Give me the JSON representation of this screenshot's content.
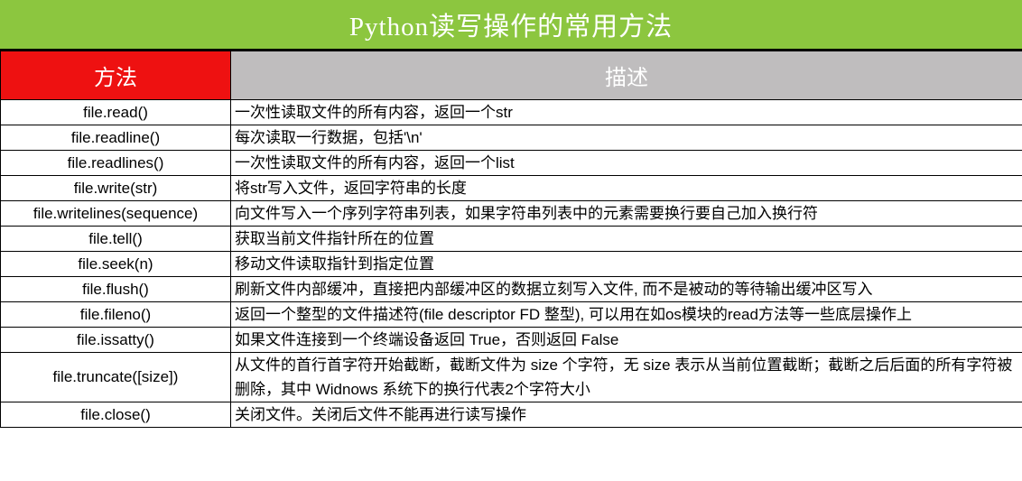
{
  "title": "Python读写操作的常用方法",
  "columns": {
    "method": "方法",
    "description": "描述"
  },
  "colors": {
    "title_bg": "#8CC63F",
    "title_text": "#FFFFFF",
    "method_header_bg": "#EE1111",
    "description_header_bg": "#BFBDBE",
    "header_text": "#FFFFFF",
    "border": "#000000",
    "body_text": "#000000",
    "row_bg": "#FFFFFF"
  },
  "rows": [
    {
      "method": "file.read()",
      "description": "一次性读取文件的所有内容，返回一个str"
    },
    {
      "method": "file.readline()",
      "description": "每次读取一行数据，包括'\\n'"
    },
    {
      "method": "file.readlines()",
      "description": "一次性读取文件的所有内容，返回一个list"
    },
    {
      "method": "file.write(str)",
      "description": "将str写入文件，返回字符串的长度"
    },
    {
      "method": "file.writelines(sequence)",
      "description": "向文件写入一个序列字符串列表，如果字符串列表中的元素需要换行要自己加入换行符"
    },
    {
      "method": "file.tell()",
      "description": "获取当前文件指针所在的位置"
    },
    {
      "method": "file.seek(n)",
      "description": "移动文件读取指针到指定位置"
    },
    {
      "method": "file.flush()",
      "description": "刷新文件内部缓冲，直接把内部缓冲区的数据立刻写入文件, 而不是被动的等待输出缓冲区写入"
    },
    {
      "method": "file.fileno()",
      "description": "返回一个整型的文件描述符(file descriptor FD 整型), 可以用在如os模块的read方法等一些底层操作上"
    },
    {
      "method": "file.issatty()",
      "description": "如果文件连接到一个终端设备返回 True，否则返回 False"
    },
    {
      "method": "file.truncate([size])",
      "description": "从文件的首行首字符开始截断，截断文件为 size 个字符，无 size 表示从当前位置截断；截断之后后面的所有字符被删除，其中 Widnows 系统下的换行代表2个字符大小"
    },
    {
      "method": "file.close()",
      "description": "关闭文件。关闭后文件不能再进行读写操作"
    }
  ]
}
